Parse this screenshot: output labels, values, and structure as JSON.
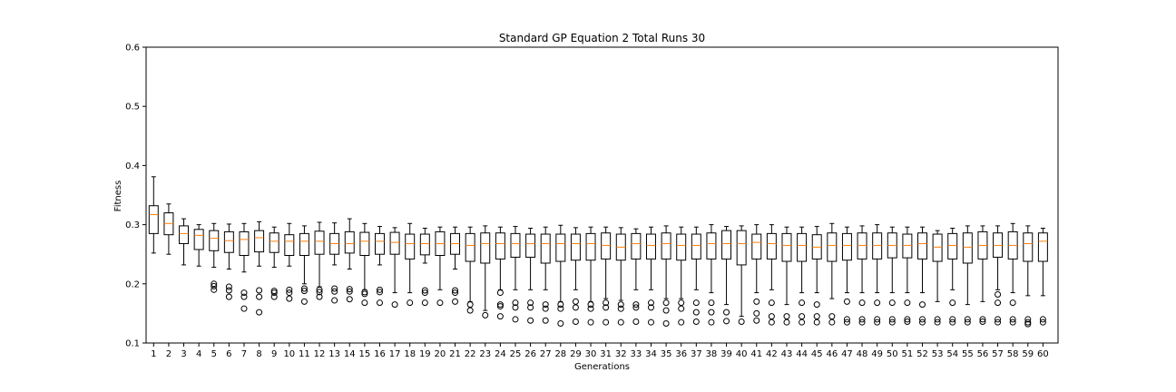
{
  "chart_data": {
    "type": "box",
    "title": "Standard GP Equation 2 Total Runs 30",
    "xlabel": "Generations",
    "ylabel": "Fitness",
    "ylim": [
      0.1,
      0.6
    ],
    "yticks": [
      "0.1",
      "0.2",
      "0.3",
      "0.4",
      "0.5",
      "0.6"
    ],
    "categories": [
      "1",
      "2",
      "3",
      "4",
      "5",
      "6",
      "7",
      "8",
      "9",
      "10",
      "11",
      "12",
      "13",
      "14",
      "15",
      "16",
      "17",
      "18",
      "19",
      "20",
      "21",
      "22",
      "23",
      "24",
      "25",
      "26",
      "27",
      "28",
      "29",
      "30",
      "31",
      "32",
      "33",
      "34",
      "35",
      "36",
      "37",
      "38",
      "39",
      "40",
      "41",
      "42",
      "43",
      "44",
      "45",
      "46",
      "47",
      "48",
      "49",
      "50",
      "51",
      "52",
      "53",
      "54",
      "55",
      "56",
      "57",
      "58",
      "59",
      "60"
    ],
    "boxes": [
      {
        "min": 0.252,
        "q1": 0.285,
        "median": 0.317,
        "q3": 0.332,
        "max": 0.381,
        "outliers": []
      },
      {
        "min": 0.25,
        "q1": 0.283,
        "median": 0.302,
        "q3": 0.32,
        "max": 0.335,
        "outliers": []
      },
      {
        "min": 0.232,
        "q1": 0.268,
        "median": 0.285,
        "q3": 0.298,
        "max": 0.31,
        "outliers": []
      },
      {
        "min": 0.23,
        "q1": 0.258,
        "median": 0.282,
        "q3": 0.292,
        "max": 0.3,
        "outliers": []
      },
      {
        "min": 0.228,
        "q1": 0.256,
        "median": 0.277,
        "q3": 0.29,
        "max": 0.302,
        "outliers": [
          0.2,
          0.196,
          0.19
        ]
      },
      {
        "min": 0.225,
        "q1": 0.253,
        "median": 0.273,
        "q3": 0.288,
        "max": 0.301,
        "outliers": [
          0.195,
          0.189,
          0.178
        ]
      },
      {
        "min": 0.22,
        "q1": 0.248,
        "median": 0.275,
        "q3": 0.288,
        "max": 0.302,
        "outliers": [
          0.185,
          0.178,
          0.158
        ]
      },
      {
        "min": 0.23,
        "q1": 0.254,
        "median": 0.278,
        "q3": 0.29,
        "max": 0.305,
        "outliers": [
          0.189,
          0.178,
          0.152
        ]
      },
      {
        "min": 0.228,
        "q1": 0.253,
        "median": 0.272,
        "q3": 0.286,
        "max": 0.296,
        "outliers": [
          0.188,
          0.185,
          0.178
        ]
      },
      {
        "min": 0.23,
        "q1": 0.248,
        "median": 0.272,
        "q3": 0.283,
        "max": 0.302,
        "outliers": [
          0.19,
          0.185,
          0.175
        ]
      },
      {
        "min": 0.2,
        "q1": 0.248,
        "median": 0.272,
        "q3": 0.285,
        "max": 0.298,
        "outliers": [
          0.192,
          0.188,
          0.17
        ]
      },
      {
        "min": 0.195,
        "q1": 0.25,
        "median": 0.272,
        "q3": 0.289,
        "max": 0.304,
        "outliers": [
          0.19,
          0.186,
          0.178
        ]
      },
      {
        "min": 0.232,
        "q1": 0.25,
        "median": 0.268,
        "q3": 0.285,
        "max": 0.303,
        "outliers": [
          0.192,
          0.187,
          0.172
        ]
      },
      {
        "min": 0.225,
        "q1": 0.252,
        "median": 0.268,
        "q3": 0.288,
        "max": 0.31,
        "outliers": [
          0.191,
          0.187,
          0.174
        ]
      },
      {
        "min": 0.19,
        "q1": 0.248,
        "median": 0.272,
        "q3": 0.287,
        "max": 0.302,
        "outliers": [
          0.186,
          0.183,
          0.168
        ]
      },
      {
        "min": 0.232,
        "q1": 0.25,
        "median": 0.272,
        "q3": 0.285,
        "max": 0.297,
        "outliers": [
          0.19,
          0.186,
          0.168
        ]
      },
      {
        "min": 0.185,
        "q1": 0.25,
        "median": 0.27,
        "q3": 0.287,
        "max": 0.295,
        "outliers": [
          0.165
        ]
      },
      {
        "min": 0.185,
        "q1": 0.242,
        "median": 0.268,
        "q3": 0.284,
        "max": 0.302,
        "outliers": [
          0.168
        ]
      },
      {
        "min": 0.235,
        "q1": 0.249,
        "median": 0.268,
        "q3": 0.284,
        "max": 0.294,
        "outliers": [
          0.189,
          0.185,
          0.168
        ]
      },
      {
        "min": 0.19,
        "q1": 0.248,
        "median": 0.268,
        "q3": 0.288,
        "max": 0.296,
        "outliers": [
          0.168
        ]
      },
      {
        "min": 0.225,
        "q1": 0.25,
        "median": 0.268,
        "q3": 0.285,
        "max": 0.296,
        "outliers": [
          0.189,
          0.185,
          0.17
        ]
      },
      {
        "min": 0.17,
        "q1": 0.238,
        "median": 0.265,
        "q3": 0.285,
        "max": 0.296,
        "outliers": [
          0.165,
          0.155
        ]
      },
      {
        "min": 0.155,
        "q1": 0.235,
        "median": 0.268,
        "q3": 0.286,
        "max": 0.298,
        "outliers": [
          0.147
        ]
      },
      {
        "min": 0.19,
        "q1": 0.242,
        "median": 0.268,
        "q3": 0.286,
        "max": 0.296,
        "outliers": [
          0.185,
          0.165,
          0.162,
          0.145
        ]
      },
      {
        "min": 0.19,
        "q1": 0.245,
        "median": 0.268,
        "q3": 0.285,
        "max": 0.297,
        "outliers": [
          0.168,
          0.16,
          0.14
        ]
      },
      {
        "min": 0.19,
        "q1": 0.245,
        "median": 0.268,
        "q3": 0.284,
        "max": 0.294,
        "outliers": [
          0.168,
          0.16,
          0.138
        ]
      },
      {
        "min": 0.19,
        "q1": 0.235,
        "median": 0.268,
        "q3": 0.284,
        "max": 0.296,
        "outliers": [
          0.165,
          0.158,
          0.138
        ]
      },
      {
        "min": 0.17,
        "q1": 0.238,
        "median": 0.268,
        "q3": 0.284,
        "max": 0.299,
        "outliers": [
          0.165,
          0.158,
          0.133
        ]
      },
      {
        "min": 0.19,
        "q1": 0.24,
        "median": 0.268,
        "q3": 0.284,
        "max": 0.295,
        "outliers": [
          0.17,
          0.16,
          0.136
        ]
      },
      {
        "min": 0.17,
        "q1": 0.24,
        "median": 0.268,
        "q3": 0.285,
        "max": 0.296,
        "outliers": [
          0.165,
          0.158,
          0.135
        ]
      },
      {
        "min": 0.175,
        "q1": 0.242,
        "median": 0.265,
        "q3": 0.286,
        "max": 0.296,
        "outliers": [
          0.168,
          0.16,
          0.135
        ]
      },
      {
        "min": 0.172,
        "q1": 0.24,
        "median": 0.262,
        "q3": 0.284,
        "max": 0.295,
        "outliers": [
          0.165,
          0.158,
          0.135
        ]
      },
      {
        "min": 0.19,
        "q1": 0.242,
        "median": 0.268,
        "q3": 0.285,
        "max": 0.293,
        "outliers": [
          0.165,
          0.16,
          0.136
        ]
      },
      {
        "min": 0.19,
        "q1": 0.242,
        "median": 0.265,
        "q3": 0.284,
        "max": 0.296,
        "outliers": [
          0.168,
          0.16,
          0.135
        ]
      },
      {
        "min": 0.175,
        "q1": 0.242,
        "median": 0.268,
        "q3": 0.286,
        "max": 0.298,
        "outliers": [
          0.168,
          0.155,
          0.133
        ]
      },
      {
        "min": 0.175,
        "q1": 0.24,
        "median": 0.265,
        "q3": 0.284,
        "max": 0.296,
        "outliers": [
          0.168,
          0.158,
          0.135
        ]
      },
      {
        "min": 0.19,
        "q1": 0.242,
        "median": 0.265,
        "q3": 0.284,
        "max": 0.296,
        "outliers": [
          0.168,
          0.152,
          0.136
        ]
      },
      {
        "min": 0.185,
        "q1": 0.242,
        "median": 0.268,
        "q3": 0.286,
        "max": 0.3,
        "outliers": [
          0.168,
          0.152,
          0.135
        ]
      },
      {
        "min": 0.165,
        "q1": 0.242,
        "median": 0.268,
        "q3": 0.29,
        "max": 0.297,
        "outliers": [
          0.152,
          0.137
        ]
      },
      {
        "min": 0.145,
        "q1": 0.232,
        "median": 0.268,
        "q3": 0.29,
        "max": 0.298,
        "outliers": [
          0.136
        ]
      },
      {
        "min": 0.185,
        "q1": 0.242,
        "median": 0.27,
        "q3": 0.284,
        "max": 0.3,
        "outliers": [
          0.17,
          0.15,
          0.138
        ]
      },
      {
        "min": 0.19,
        "q1": 0.242,
        "median": 0.268,
        "q3": 0.285,
        "max": 0.3,
        "outliers": [
          0.168,
          0.145,
          0.135
        ]
      },
      {
        "min": 0.165,
        "q1": 0.238,
        "median": 0.265,
        "q3": 0.285,
        "max": 0.296,
        "outliers": [
          0.145,
          0.135
        ]
      },
      {
        "min": 0.185,
        "q1": 0.238,
        "median": 0.265,
        "q3": 0.285,
        "max": 0.296,
        "outliers": [
          0.168,
          0.145,
          0.135
        ]
      },
      {
        "min": 0.185,
        "q1": 0.242,
        "median": 0.262,
        "q3": 0.283,
        "max": 0.297,
        "outliers": [
          0.165,
          0.145,
          0.135
        ]
      },
      {
        "min": 0.175,
        "q1": 0.238,
        "median": 0.265,
        "q3": 0.286,
        "max": 0.302,
        "outliers": [
          0.145,
          0.135
        ]
      },
      {
        "min": 0.185,
        "q1": 0.24,
        "median": 0.265,
        "q3": 0.285,
        "max": 0.296,
        "outliers": [
          0.17,
          0.14,
          0.135
        ]
      },
      {
        "min": 0.185,
        "q1": 0.242,
        "median": 0.265,
        "q3": 0.286,
        "max": 0.298,
        "outliers": [
          0.168,
          0.14,
          0.135
        ]
      },
      {
        "min": 0.185,
        "q1": 0.242,
        "median": 0.265,
        "q3": 0.286,
        "max": 0.3,
        "outliers": [
          0.168,
          0.14,
          0.135
        ]
      },
      {
        "min": 0.185,
        "q1": 0.244,
        "median": 0.265,
        "q3": 0.286,
        "max": 0.296,
        "outliers": [
          0.168,
          0.14,
          0.135
        ]
      },
      {
        "min": 0.185,
        "q1": 0.244,
        "median": 0.265,
        "q3": 0.284,
        "max": 0.296,
        "outliers": [
          0.168,
          0.14,
          0.136
        ]
      },
      {
        "min": 0.185,
        "q1": 0.242,
        "median": 0.268,
        "q3": 0.286,
        "max": 0.296,
        "outliers": [
          0.165,
          0.14,
          0.135
        ]
      },
      {
        "min": 0.17,
        "q1": 0.238,
        "median": 0.262,
        "q3": 0.284,
        "max": 0.29,
        "outliers": [
          0.14,
          0.135
        ]
      },
      {
        "min": 0.19,
        "q1": 0.242,
        "median": 0.265,
        "q3": 0.285,
        "max": 0.294,
        "outliers": [
          0.168,
          0.14,
          0.135
        ]
      },
      {
        "min": 0.165,
        "q1": 0.235,
        "median": 0.262,
        "q3": 0.286,
        "max": 0.298,
        "outliers": [
          0.14,
          0.135
        ]
      },
      {
        "min": 0.17,
        "q1": 0.242,
        "median": 0.265,
        "q3": 0.288,
        "max": 0.298,
        "outliers": [
          0.14,
          0.136
        ]
      },
      {
        "min": 0.19,
        "q1": 0.245,
        "median": 0.265,
        "q3": 0.286,
        "max": 0.298,
        "outliers": [
          0.182,
          0.168,
          0.14,
          0.135
        ]
      },
      {
        "min": 0.185,
        "q1": 0.242,
        "median": 0.265,
        "q3": 0.288,
        "max": 0.302,
        "outliers": [
          0.168,
          0.14,
          0.135
        ]
      },
      {
        "min": 0.18,
        "q1": 0.238,
        "median": 0.268,
        "q3": 0.286,
        "max": 0.298,
        "outliers": [
          0.14,
          0.135,
          0.132
        ]
      },
      {
        "min": 0.18,
        "q1": 0.238,
        "median": 0.272,
        "q3": 0.286,
        "max": 0.294,
        "outliers": [
          0.14,
          0.135
        ]
      }
    ],
    "box_color": "#000000",
    "median_color": "#ff7f0e",
    "grid": false,
    "legend": "none"
  }
}
